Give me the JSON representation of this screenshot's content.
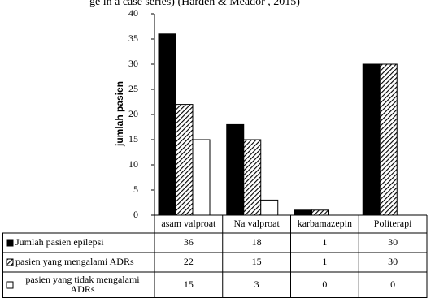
{
  "caption_fragment": "ge in a case series) (Harden & Meador , 2015)",
  "chart_data": {
    "type": "bar",
    "y_label": "jumlah pasien",
    "categories": [
      "asam valproat",
      "Na valproat",
      "karbamazepin",
      "Politerapi"
    ],
    "series": [
      {
        "name": "Jumlah pasien epilepsi",
        "color": "#000000",
        "pattern": "solid",
        "values": [
          36,
          18,
          1,
          30
        ]
      },
      {
        "name": "pasien yang mengalami ADRs",
        "color": "#000000",
        "pattern": "hatch",
        "values": [
          22,
          15,
          1,
          30
        ]
      },
      {
        "name": "pasien yang tidak mengalami ADRs",
        "color": "#ffffff",
        "pattern": "solid",
        "values": [
          15,
          3,
          0,
          0
        ]
      }
    ],
    "ylim": [
      0,
      40
    ],
    "yticks": [
      0,
      5,
      10,
      15,
      20,
      25,
      30,
      35,
      40
    ],
    "grid": false
  }
}
